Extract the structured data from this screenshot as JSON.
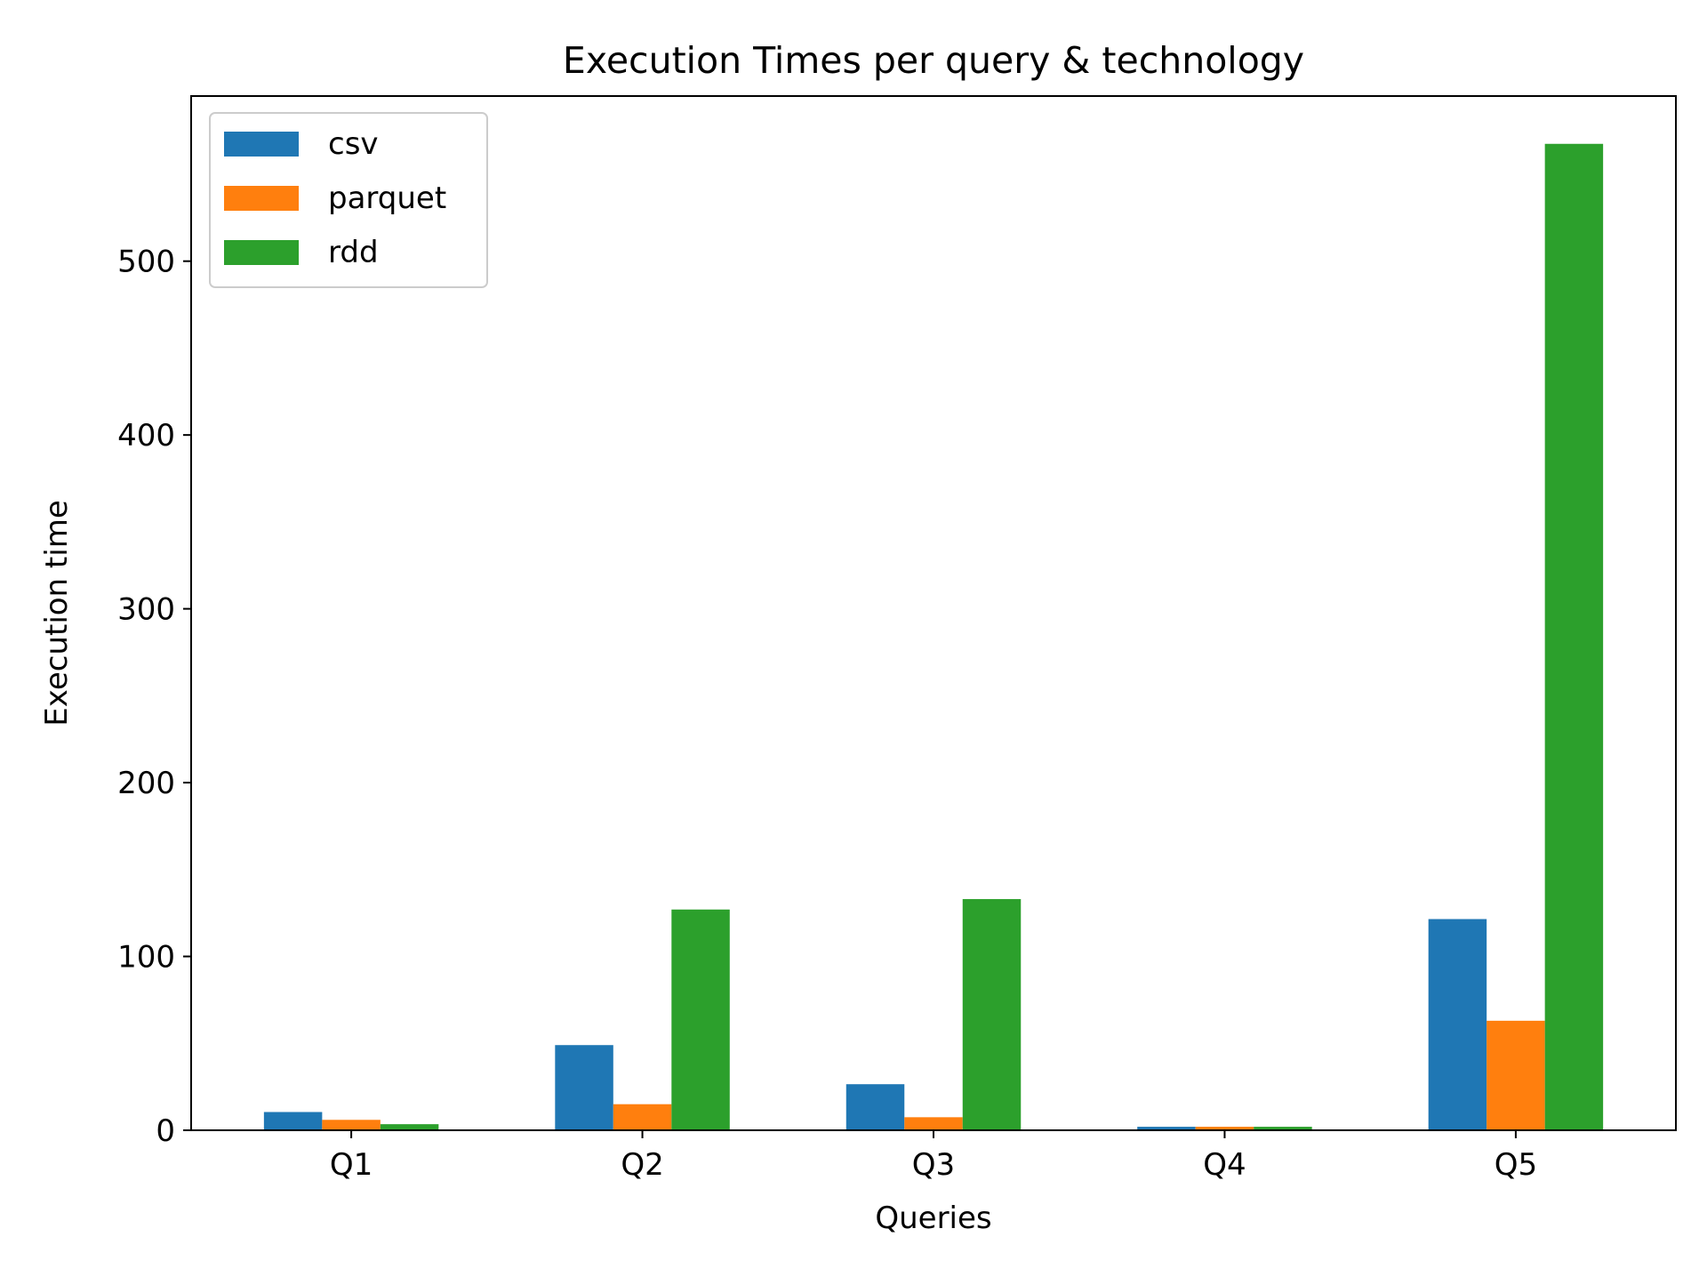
{
  "chart_data": {
    "type": "bar",
    "title": "Execution Times per query & technology",
    "xlabel": "Queries",
    "ylabel": "Execution time",
    "categories": [
      "Q1",
      "Q2",
      "Q3",
      "Q4",
      "Q5"
    ],
    "series": [
      {
        "name": "csv",
        "color": "#1f77b4",
        "values": [
          10.5,
          49,
          26.5,
          2,
          121.5
        ]
      },
      {
        "name": "parquet",
        "color": "#ff7f0e",
        "values": [
          6,
          15,
          7.5,
          2,
          63
        ]
      },
      {
        "name": "rdd",
        "color": "#2ca02c",
        "values": [
          3.5,
          127,
          133,
          2,
          567.5
        ]
      }
    ],
    "ylim": [
      0,
      595
    ],
    "yticks": [
      0,
      100,
      200,
      300,
      400,
      500
    ],
    "grid": false,
    "legend_position": "top-left"
  }
}
